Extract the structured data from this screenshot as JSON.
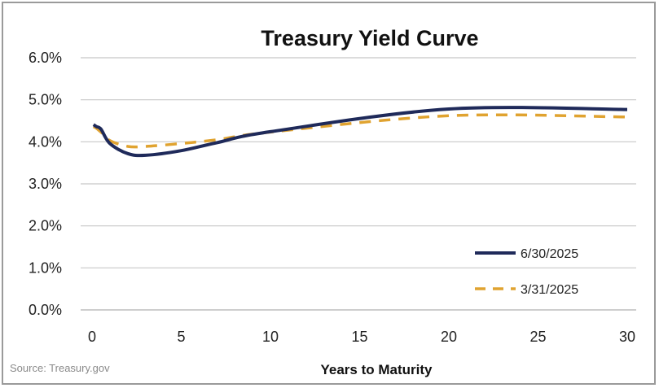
{
  "chart_data": {
    "type": "line",
    "title": "Treasury Yield Curve",
    "xlabel": "Years to Maturity",
    "ylabel": "",
    "xlim": [
      0,
      30
    ],
    "ylim": [
      0,
      6
    ],
    "xticks": [
      "0",
      "5",
      "10",
      "15",
      "20",
      "25",
      "30"
    ],
    "yticks": [
      "0.0%",
      "1.0%",
      "2.0%",
      "3.0%",
      "4.0%",
      "5.0%",
      "6.0%"
    ],
    "grid": "horizontal",
    "legend_position": "bottom-right",
    "source": "Source: Treasury.gov",
    "series": [
      {
        "name": "6/30/2025",
        "color": "#1f2a5a",
        "style": "solid",
        "x": [
          0.083,
          0.25,
          0.5,
          1,
          2,
          3,
          5,
          7,
          10,
          20,
          30
        ],
        "y": [
          4.41,
          4.36,
          4.3,
          3.96,
          3.72,
          3.68,
          3.79,
          3.98,
          4.24,
          4.78,
          4.77
        ]
      },
      {
        "name": "3/31/2025",
        "color": "#e0a330",
        "style": "dashed",
        "x": [
          0.083,
          0.25,
          0.5,
          1,
          2,
          3,
          5,
          7,
          10,
          20,
          30
        ],
        "y": [
          4.36,
          4.32,
          4.23,
          4.03,
          3.89,
          3.89,
          3.96,
          4.05,
          4.23,
          4.62,
          4.59
        ]
      }
    ]
  }
}
